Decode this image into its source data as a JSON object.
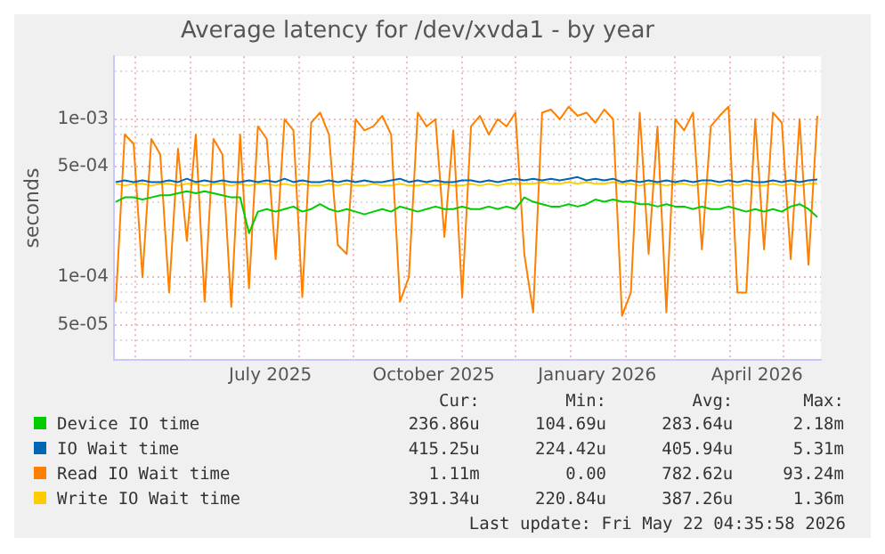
{
  "chart_data": {
    "type": "line",
    "title": "Average latency for /dev/xvda1 - by year",
    "ylabel": "seconds",
    "log": true,
    "grid": true,
    "legend": "bottom",
    "marker": "none",
    "line_style": "solid",
    "x": [
      "2025-04-20",
      "2025-04-25",
      "2025-04-30",
      "2025-05-05",
      "2025-05-10",
      "2025-05-15",
      "2025-05-20",
      "2025-05-25",
      "2025-05-30",
      "2025-06-04",
      "2025-06-09",
      "2025-06-14",
      "2025-06-19",
      "2025-06-24",
      "2025-06-29",
      "2025-07-04",
      "2025-07-09",
      "2025-07-14",
      "2025-07-19",
      "2025-07-24",
      "2025-07-29",
      "2025-08-03",
      "2025-08-08",
      "2025-08-13",
      "2025-08-18",
      "2025-08-23",
      "2025-08-28",
      "2025-09-02",
      "2025-09-07",
      "2025-09-12",
      "2025-09-17",
      "2025-09-22",
      "2025-09-27",
      "2025-10-02",
      "2025-10-07",
      "2025-10-12",
      "2025-10-17",
      "2025-10-22",
      "2025-10-27",
      "2025-11-01",
      "2025-11-06",
      "2025-11-11",
      "2025-11-16",
      "2025-11-21",
      "2025-11-26",
      "2025-12-01",
      "2025-12-06",
      "2025-12-11",
      "2025-12-16",
      "2025-12-21",
      "2025-12-26",
      "2025-12-31",
      "2026-01-05",
      "2026-01-10",
      "2026-01-15",
      "2026-01-20",
      "2026-01-25",
      "2026-01-30",
      "2026-02-04",
      "2026-02-09",
      "2026-02-14",
      "2026-02-19",
      "2026-02-24",
      "2026-03-01",
      "2026-03-06",
      "2026-03-11",
      "2026-03-16",
      "2026-03-21",
      "2026-03-26",
      "2026-03-31",
      "2026-04-05",
      "2026-04-10",
      "2026-04-15",
      "2026-04-20",
      "2026-04-25",
      "2026-04-30",
      "2026-05-05",
      "2026-05-10",
      "2026-05-15",
      "2026-05-20"
    ],
    "xlim": [
      "2025-04-19",
      "2026-05-22"
    ],
    "xticks": [
      {
        "value": "2025-05-01",
        "label": null
      },
      {
        "value": "2025-06-01",
        "label": null
      },
      {
        "value": "2025-07-01",
        "label": null
      },
      {
        "value": "2025-07-16",
        "label": "July 2025"
      },
      {
        "value": "2025-08-01",
        "label": null
      },
      {
        "value": "2025-09-01",
        "label": null
      },
      {
        "value": "2025-10-01",
        "label": null
      },
      {
        "value": "2025-10-16",
        "label": "October 2025"
      },
      {
        "value": "2025-11-01",
        "label": null
      },
      {
        "value": "2025-12-01",
        "label": null
      },
      {
        "value": "2026-01-01",
        "label": null
      },
      {
        "value": "2026-01-16",
        "label": "January 2026"
      },
      {
        "value": "2026-02-01",
        "label": null
      },
      {
        "value": "2026-03-01",
        "label": null
      },
      {
        "value": "2026-04-01",
        "label": null
      },
      {
        "value": "2026-04-16",
        "label": "April 2026"
      },
      {
        "value": "2026-05-01",
        "label": null
      }
    ],
    "ylim": [
      3e-05,
      0.0025
    ],
    "yticks": [
      {
        "value": 4e-05,
        "label": null
      },
      {
        "value": 5e-05,
        "label": "5e-05"
      },
      {
        "value": 6e-05,
        "label": null
      },
      {
        "value": 7e-05,
        "label": null
      },
      {
        "value": 8e-05,
        "label": null
      },
      {
        "value": 9e-05,
        "label": null
      },
      {
        "value": 0.0001,
        "label": "1e-04"
      },
      {
        "value": 0.0002,
        "label": null
      },
      {
        "value": 0.0003,
        "label": null
      },
      {
        "value": 0.0004,
        "label": null
      },
      {
        "value": 0.0005,
        "label": "5e-04"
      },
      {
        "value": 0.0006,
        "label": null
      },
      {
        "value": 0.0007,
        "label": null
      },
      {
        "value": 0.0008,
        "label": null
      },
      {
        "value": 0.0009,
        "label": null
      },
      {
        "value": 0.001,
        "label": "1e-03"
      },
      {
        "value": 0.002,
        "label": null
      }
    ],
    "series": [
      {
        "name": "Device IO time",
        "color": "#00cc00",
        "values": [
          0.0003,
          0.00032,
          0.00032,
          0.00031,
          0.00032,
          0.00033,
          0.00033,
          0.00034,
          0.00035,
          0.00034,
          0.00035,
          0.00034,
          0.00033,
          0.00032,
          0.00032,
          0.00019,
          0.00026,
          0.00027,
          0.00026,
          0.00027,
          0.00028,
          0.00026,
          0.00027,
          0.00029,
          0.00027,
          0.00026,
          0.00027,
          0.00026,
          0.00025,
          0.00026,
          0.00027,
          0.00026,
          0.00028,
          0.00027,
          0.00026,
          0.00027,
          0.00028,
          0.00027,
          0.00027,
          0.00028,
          0.00027,
          0.00027,
          0.00028,
          0.00027,
          0.00028,
          0.00027,
          0.00032,
          0.0003,
          0.00029,
          0.00028,
          0.00028,
          0.00029,
          0.00028,
          0.00029,
          0.00031,
          0.0003,
          0.00031,
          0.0003,
          0.0003,
          0.00029,
          0.00029,
          0.00028,
          0.00029,
          0.00028,
          0.00028,
          0.00027,
          0.00028,
          0.00027,
          0.00027,
          0.00028,
          0.00027,
          0.00026,
          0.00027,
          0.00026,
          0.00027,
          0.00026,
          0.00028,
          0.00029,
          0.00027,
          0.00024
        ]
      },
      {
        "name": "IO Wait time",
        "color": "#0066b3",
        "values": [
          0.0004,
          0.00041,
          0.0004,
          0.00041,
          0.0004,
          0.0004,
          0.00041,
          0.0004,
          0.00042,
          0.0004,
          0.00041,
          0.0004,
          0.00041,
          0.0004,
          0.0004,
          0.00041,
          0.0004,
          0.00041,
          0.0004,
          0.00042,
          0.0004,
          0.00041,
          0.0004,
          0.0004,
          0.00041,
          0.0004,
          0.00041,
          0.0004,
          0.00041,
          0.0004,
          0.0004,
          0.00041,
          0.00042,
          0.0004,
          0.00041,
          0.0004,
          0.00041,
          0.0004,
          0.0004,
          0.00041,
          0.00041,
          0.0004,
          0.00041,
          0.0004,
          0.00041,
          0.00042,
          0.00041,
          0.00042,
          0.00041,
          0.00042,
          0.00041,
          0.00042,
          0.00043,
          0.00041,
          0.00042,
          0.00041,
          0.00042,
          0.0004,
          0.00041,
          0.0004,
          0.00041,
          0.0004,
          0.00041,
          0.0004,
          0.00041,
          0.0004,
          0.00041,
          0.00041,
          0.0004,
          0.00041,
          0.0004,
          0.00041,
          0.0004,
          0.0004,
          0.00041,
          0.0004,
          0.00041,
          0.0004,
          0.00041,
          0.000415
        ]
      },
      {
        "name": "Read IO Wait time",
        "color": "#ff8000",
        "values": [
          7e-05,
          0.0008,
          0.0007,
          0.0001,
          0.00075,
          0.0006,
          8e-05,
          0.00065,
          0.00017,
          0.0008,
          7e-05,
          0.00075,
          0.0006,
          6.5e-05,
          0.0008,
          8.5e-05,
          0.0009,
          0.00075,
          0.00013,
          0.001,
          0.00085,
          7.5e-05,
          0.00095,
          0.0011,
          0.0008,
          0.00016,
          0.00014,
          0.001,
          0.00085,
          0.0009,
          0.00105,
          0.0008,
          7e-05,
          0.0001,
          0.0011,
          0.0009,
          0.001,
          0.00018,
          0.00085,
          7.5e-05,
          0.0009,
          0.00105,
          0.0008,
          0.001,
          0.0009,
          0.0011,
          0.00014,
          6e-05,
          0.0011,
          0.00115,
          0.001,
          0.0012,
          0.00105,
          0.0011,
          0.00095,
          0.00115,
          0.001,
          5.7e-05,
          8e-05,
          0.0011,
          0.00014,
          0.0009,
          6e-05,
          0.001,
          0.00085,
          0.0011,
          0.00015,
          0.0009,
          0.00105,
          0.0012,
          8e-05,
          8e-05,
          0.001,
          0.00015,
          0.0011,
          0.00095,
          0.00013,
          0.001,
          0.00012,
          0.00105
        ]
      },
      {
        "name": "Write IO Wait time",
        "color": "#ffcc00",
        "values": [
          0.00039,
          0.00038,
          0.00039,
          0.00039,
          0.00038,
          0.00039,
          0.00039,
          0.00038,
          0.00039,
          0.00039,
          0.00038,
          0.00039,
          0.00039,
          0.00038,
          0.00039,
          0.00038,
          0.00039,
          0.00039,
          0.00038,
          0.00039,
          0.00038,
          0.00039,
          0.00038,
          0.00038,
          0.00039,
          0.00038,
          0.00039,
          0.00038,
          0.00038,
          0.00039,
          0.00038,
          0.00038,
          0.00039,
          0.00038,
          0.00038,
          0.00039,
          0.00038,
          0.00039,
          0.00038,
          0.00038,
          0.00039,
          0.00038,
          0.00039,
          0.00038,
          0.00039,
          0.00039,
          0.00039,
          0.00039,
          0.0004,
          0.00039,
          0.00039,
          0.0004,
          0.00039,
          0.0004,
          0.00039,
          0.00039,
          0.0004,
          0.00039,
          0.00039,
          0.00038,
          0.00039,
          0.00039,
          0.00038,
          0.00039,
          0.00039,
          0.00038,
          0.00039,
          0.00039,
          0.00038,
          0.00039,
          0.00038,
          0.00039,
          0.00038,
          0.00038,
          0.00039,
          0.00038,
          0.00039,
          0.00038,
          0.00039,
          0.00039
        ]
      }
    ],
    "annotations": [
      "Cur:",
      "Min:",
      "Avg:",
      "Max:",
      "236.86u",
      "104.69u",
      "283.64u",
      "2.18m",
      "415.25u",
      "224.42u",
      "405.94u",
      "5.31m",
      "1.11m",
      "0.00",
      "782.62u",
      "93.24m",
      "391.34u",
      "220.84u",
      "387.26u",
      "1.36m",
      "Last update: Fri May 22 04:35:58 2026"
    ]
  }
}
